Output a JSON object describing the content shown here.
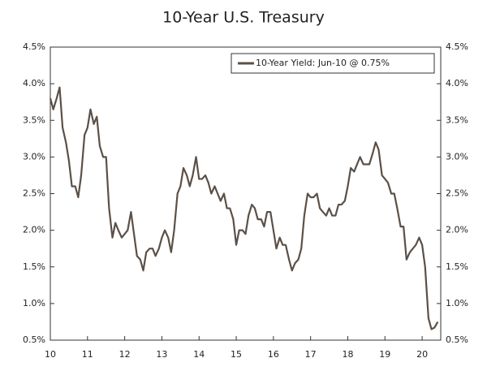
{
  "chart_data": {
    "type": "line",
    "title": "10-Year U.S. Treasury",
    "x": [
      10.0,
      10.08,
      10.17,
      10.25,
      10.33,
      10.42,
      10.5,
      10.58,
      10.67,
      10.75,
      10.83,
      10.92,
      11.0,
      11.08,
      11.17,
      11.25,
      11.33,
      11.42,
      11.5,
      11.58,
      11.67,
      11.75,
      11.83,
      11.92,
      12.0,
      12.08,
      12.17,
      12.25,
      12.33,
      12.42,
      12.5,
      12.58,
      12.67,
      12.75,
      12.83,
      12.92,
      13.0,
      13.08,
      13.17,
      13.25,
      13.33,
      13.42,
      13.5,
      13.58,
      13.67,
      13.75,
      13.83,
      13.92,
      14.0,
      14.08,
      14.17,
      14.25,
      14.33,
      14.42,
      14.5,
      14.58,
      14.67,
      14.75,
      14.83,
      14.92,
      15.0,
      15.08,
      15.17,
      15.25,
      15.33,
      15.42,
      15.5,
      15.58,
      15.67,
      15.75,
      15.83,
      15.92,
      16.0,
      16.08,
      16.17,
      16.25,
      16.33,
      16.42,
      16.5,
      16.58,
      16.67,
      16.75,
      16.83,
      16.92,
      17.0,
      17.08,
      17.17,
      17.25,
      17.33,
      17.42,
      17.5,
      17.58,
      17.67,
      17.75,
      17.83,
      17.92,
      18.0,
      18.08,
      18.17,
      18.25,
      18.33,
      18.42,
      18.5,
      18.58,
      18.67,
      18.75,
      18.83,
      18.92,
      19.0,
      19.08,
      19.17,
      19.25,
      19.33,
      19.42,
      19.5,
      19.58,
      19.67,
      19.75,
      19.83,
      19.92,
      20.0,
      20.08,
      20.17,
      20.25,
      20.33,
      20.42
    ],
    "series": [
      {
        "name": "10-Year Yield: Jun-10 @ 0.75%",
        "color": "#5b5047",
        "values": [
          3.8,
          3.65,
          3.8,
          3.95,
          3.4,
          3.2,
          2.95,
          2.6,
          2.6,
          2.45,
          2.75,
          3.3,
          3.4,
          3.65,
          3.45,
          3.55,
          3.15,
          3.0,
          3.0,
          2.3,
          1.9,
          2.1,
          2.0,
          1.9,
          1.95,
          2.0,
          2.25,
          1.95,
          1.65,
          1.6,
          1.45,
          1.7,
          1.75,
          1.75,
          1.65,
          1.75,
          1.9,
          2.0,
          1.9,
          1.7,
          2.0,
          2.5,
          2.6,
          2.85,
          2.75,
          2.6,
          2.75,
          3.0,
          2.7,
          2.7,
          2.75,
          2.65,
          2.5,
          2.6,
          2.5,
          2.4,
          2.5,
          2.3,
          2.3,
          2.15,
          1.8,
          2.0,
          2.0,
          1.95,
          2.2,
          2.35,
          2.3,
          2.15,
          2.15,
          2.05,
          2.25,
          2.25,
          2.0,
          1.75,
          1.9,
          1.8,
          1.8,
          1.6,
          1.45,
          1.55,
          1.6,
          1.75,
          2.2,
          2.5,
          2.45,
          2.45,
          2.5,
          2.3,
          2.25,
          2.2,
          2.3,
          2.2,
          2.2,
          2.35,
          2.35,
          2.4,
          2.6,
          2.85,
          2.8,
          2.9,
          3.0,
          2.9,
          2.9,
          2.9,
          3.05,
          3.2,
          3.1,
          2.75,
          2.7,
          2.65,
          2.5,
          2.5,
          2.3,
          2.05,
          2.05,
          1.6,
          1.7,
          1.75,
          1.8,
          1.9,
          1.8,
          1.5,
          0.8,
          0.65,
          0.67,
          0.75
        ]
      }
    ],
    "xlim": [
      10,
      20.5
    ],
    "xticks": [
      10,
      11,
      12,
      13,
      14,
      15,
      16,
      17,
      18,
      19,
      20
    ],
    "ylim": [
      0.5,
      4.5
    ],
    "yticks": [
      {
        "value": 0.5,
        "label": "0.5%"
      },
      {
        "value": 1.0,
        "label": "1.0%"
      },
      {
        "value": 1.5,
        "label": "1.5%"
      },
      {
        "value": 2.0,
        "label": "2.0%"
      },
      {
        "value": 2.5,
        "label": "2.5%"
      },
      {
        "value": 3.0,
        "label": "3.0%"
      },
      {
        "value": 3.5,
        "label": "3.5%"
      },
      {
        "value": 4.0,
        "label": "4.0%"
      },
      {
        "value": 4.5,
        "label": "4.5%"
      }
    ],
    "y2lim": [
      0.5,
      4.5
    ],
    "y2ticks": [
      {
        "value": 0.5,
        "label": "0.5%"
      },
      {
        "value": 1.0,
        "label": "1.0%"
      },
      {
        "value": 1.5,
        "label": "1.5%"
      },
      {
        "value": 2.0,
        "label": "2.0%"
      },
      {
        "value": 2.5,
        "label": "2.5%"
      },
      {
        "value": 3.0,
        "label": "3.0%"
      },
      {
        "value": 3.5,
        "label": "3.5%"
      },
      {
        "value": 4.0,
        "label": "4.0%"
      },
      {
        "value": 4.5,
        "label": "4.5%"
      }
    ],
    "legend": "top-right"
  }
}
